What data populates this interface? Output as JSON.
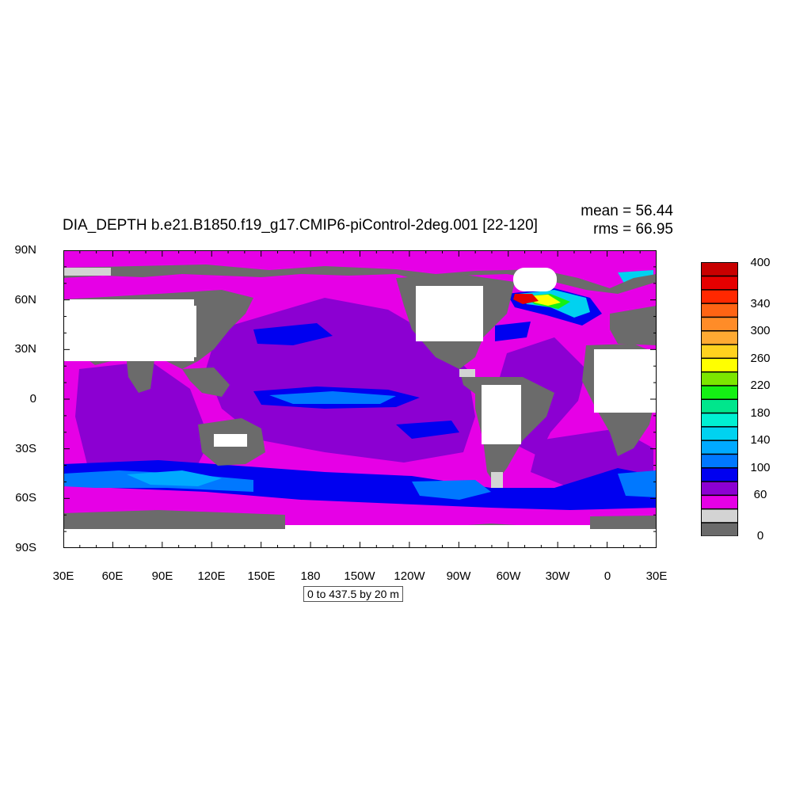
{
  "title": "DIA_DEPTH b.e21.B1850.f19_g17.CMIP6-piControl-2deg.001 [22-120]",
  "stats": {
    "mean": "mean = 56.44",
    "rms": "rms = 66.95"
  },
  "contour_info": "0 to 437.5 by 20 m",
  "lat_labels": [
    "90N",
    "60N",
    "30N",
    "0",
    "30S",
    "60S",
    "90S"
  ],
  "lon_labels": [
    "30E",
    "60E",
    "90E",
    "120E",
    "150E",
    "180",
    "150W",
    "120W",
    "90W",
    "60W",
    "30W",
    "0",
    "30E"
  ],
  "colorbar": {
    "colors": [
      "#6b6b6b",
      "#d3d3d3",
      "#e600e6",
      "#8c00d2",
      "#0000f0",
      "#0078ff",
      "#00aaff",
      "#00d2f0",
      "#00f0d2",
      "#00e68c",
      "#14f014",
      "#7ce600",
      "#ffff00",
      "#ffd21e",
      "#ffaa32",
      "#ff8c28",
      "#ff6414",
      "#ff2800",
      "#e60000",
      "#c80000"
    ],
    "labels": [
      "0",
      "60",
      "100",
      "140",
      "180",
      "220",
      "260",
      "300",
      "340",
      "400"
    ]
  },
  "colors": {
    "land": "#6b6b6b",
    "ice": "#d3d3d3",
    "missing": "#ffffff",
    "magenta": "#e600e6",
    "purple": "#8c00d2",
    "blue": "#0000f0",
    "lightblue": "#0078ff",
    "cyan": "#00d2f0"
  }
}
